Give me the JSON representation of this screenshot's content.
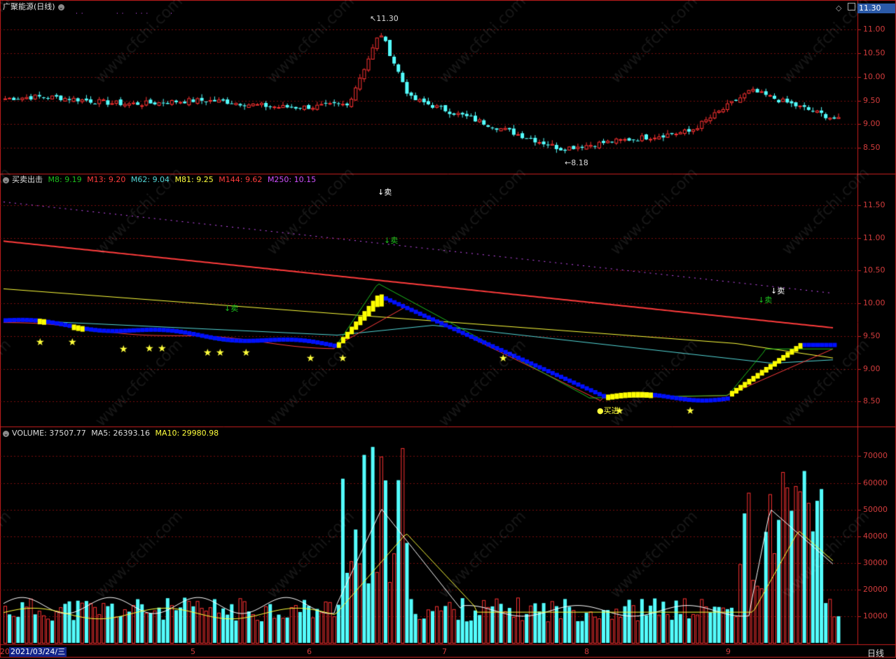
{
  "header": {
    "stock_name": "广聚能源(日线)",
    "current_price": "11.30"
  },
  "price_axis": [
    "11.00",
    "10.50",
    "10.00",
    "9.50",
    "9.00",
    "8.50"
  ],
  "price_annotations": {
    "high": "11.30",
    "low": "8.18"
  },
  "indicator": {
    "name": "买卖出击",
    "m8": "M8: 9.19",
    "m13": "M13: 9.20",
    "m62": "M62: 9.04",
    "m81": "M81: 9.25",
    "m144": "M144: 9.62",
    "m250": "M250: 10.15",
    "axis": [
      "11.50",
      "11.00",
      "10.50",
      "10.00",
      "9.50",
      "9.00",
      "8.50"
    ],
    "sell_1": "↓卖",
    "sell_2": "↓卖",
    "sell_3": "↓卖",
    "sell_4": "↓卖",
    "sell_5": "↓卖",
    "buy": "买进"
  },
  "volume": {
    "label": "VOLUME: 37507.77",
    "ma5": "MA5: 26393.16",
    "ma10": "MA10: 29980.98",
    "axis": [
      "70000",
      "60000",
      "50000",
      "40000",
      "30000",
      "20000",
      "10000"
    ]
  },
  "footer": {
    "prefix": "20",
    "date": "2021/03/24/三",
    "months": [
      "5",
      "6",
      "7",
      "8",
      "9"
    ],
    "period": "日线"
  },
  "colors": {
    "up": "#ff3232",
    "down": "#54ffff",
    "grid": "#8b0000",
    "m8": "#1dbf1d",
    "m13": "#ff3c3c",
    "m62": "#54d8d8",
    "m81": "#ffff3c",
    "m144": "#ff3c3c",
    "m250": "#d050ff"
  },
  "watermark": "www.cfchi.com"
}
